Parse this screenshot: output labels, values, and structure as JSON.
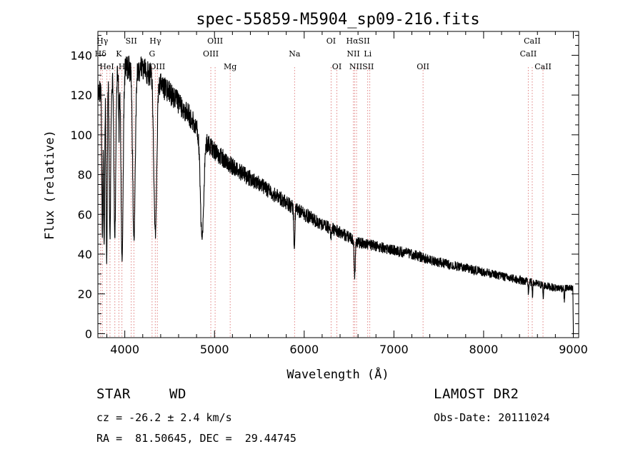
{
  "chart_data": {
    "type": "line",
    "title": "spec-55859-M5904_sp09-216.fits",
    "xlabel": "Wavelength (Å)",
    "ylabel": "Flux (relative)",
    "xlim": [
      3700,
      9060
    ],
    "ylim": [
      -2,
      152
    ],
    "xticks": [
      4000,
      5000,
      6000,
      7000,
      8000,
      9000
    ],
    "yticks": [
      0,
      20,
      40,
      60,
      80,
      100,
      120,
      140
    ],
    "minor_x_step": 200,
    "minor_y_step": 5,
    "grid": false,
    "legend": "none",
    "line_color": "#000000",
    "marker_color": "#d04040",
    "continuum": [
      [
        3700,
        120
      ],
      [
        3800,
        126
      ],
      [
        3900,
        130
      ],
      [
        4000,
        133
      ],
      [
        4100,
        134
      ],
      [
        4200,
        133
      ],
      [
        4300,
        130
      ],
      [
        4400,
        125
      ],
      [
        4500,
        121
      ],
      [
        4600,
        116
      ],
      [
        4700,
        111
      ],
      [
        4800,
        104
      ],
      [
        4900,
        97
      ],
      [
        5000,
        92
      ],
      [
        5100,
        88
      ],
      [
        5200,
        84
      ],
      [
        5400,
        78
      ],
      [
        5600,
        72
      ],
      [
        5800,
        66
      ],
      [
        6000,
        60
      ],
      [
        6200,
        55
      ],
      [
        6400,
        51
      ],
      [
        6600,
        46
      ],
      [
        6800,
        44
      ],
      [
        7000,
        42
      ],
      [
        7200,
        40
      ],
      [
        7400,
        37
      ],
      [
        7600,
        35
      ],
      [
        7800,
        33
      ],
      [
        8000,
        31
      ],
      [
        8200,
        29
      ],
      [
        8400,
        27
      ],
      [
        8600,
        25
      ],
      [
        8800,
        23
      ],
      [
        8950,
        23
      ],
      [
        9000,
        22
      ]
    ],
    "absorption_lines": [
      {
        "center": 3750,
        "depth": 75,
        "width": 8
      },
      {
        "center": 3770,
        "depth": 80,
        "width": 8
      },
      {
        "center": 3798,
        "depth": 90,
        "width": 9
      },
      {
        "center": 3835,
        "depth": 80,
        "width": 11
      },
      {
        "center": 3889,
        "depth": 80,
        "width": 14
      },
      {
        "center": 3935,
        "depth": 30,
        "width": 5
      },
      {
        "center": 3970,
        "depth": 95,
        "width": 16
      },
      {
        "center": 4102,
        "depth": 87,
        "width": 20
      },
      {
        "center": 4340,
        "depth": 78,
        "width": 22
      },
      {
        "center": 4861,
        "depth": 52,
        "width": 26
      },
      {
        "center": 5890,
        "depth": 20,
        "width": 9
      },
      {
        "center": 6300,
        "depth": 4,
        "width": 8
      },
      {
        "center": 6563,
        "depth": 18,
        "width": 9
      },
      {
        "center": 8500,
        "depth": 6,
        "width": 5
      },
      {
        "center": 8545,
        "depth": 6,
        "width": 5
      },
      {
        "center": 8665,
        "depth": 7,
        "width": 5
      },
      {
        "center": 8900,
        "depth": 6,
        "width": 6
      }
    ],
    "noise_amplitude": 2.5,
    "line_markers": [
      {
        "label": "Hγ",
        "wavelength": 3750,
        "row": 0
      },
      {
        "label": "SII",
        "wavelength": 4072,
        "row": 0
      },
      {
        "label": "Hγ",
        "wavelength": 4340,
        "row": 0
      },
      {
        "label": "OIII",
        "wavelength": 5007,
        "row": 0
      },
      {
        "label": "OI",
        "wavelength": 6300,
        "row": 0
      },
      {
        "label": "HαSII",
        "wavelength": 6600,
        "row": 0
      },
      {
        "label": "CaII",
        "wavelength": 8542,
        "row": 0
      },
      {
        "label": "Hδ",
        "wavelength": 3730,
        "row": 1
      },
      {
        "label": "K",
        "wavelength": 3934,
        "row": 1
      },
      {
        "label": "G",
        "wavelength": 4304,
        "row": 1
      },
      {
        "label": "OIII",
        "wavelength": 4959,
        "row": 1
      },
      {
        "label": "Na",
        "wavelength": 5893,
        "row": 1
      },
      {
        "label": "NII",
        "wavelength": 6548,
        "row": 1
      },
      {
        "label": "Li",
        "wavelength": 6708,
        "row": 1
      },
      {
        "label": "CaII",
        "wavelength": 8498,
        "row": 1
      },
      {
        "label": "HeI",
        "wavelength": 3800,
        "row": 2
      },
      {
        "label": "H",
        "wavelength": 3968,
        "row": 2
      },
      {
        "label": "OIII",
        "wavelength": 4363,
        "row": 2
      },
      {
        "label": "Mg",
        "wavelength": 5175,
        "row": 2
      },
      {
        "label": "OI",
        "wavelength": 6364,
        "row": 2
      },
      {
        "label": "NIISII",
        "wavelength": 6640,
        "row": 2
      },
      {
        "label": "OII",
        "wavelength": 7325,
        "row": 2
      },
      {
        "label": "CaII",
        "wavelength": 8662,
        "row": 2
      }
    ],
    "marker_lines": [
      3730,
      3750,
      3800,
      3835,
      3889,
      3934,
      3968,
      4072,
      4102,
      4304,
      4340,
      4363,
      4959,
      5007,
      5175,
      5893,
      6300,
      6364,
      6548,
      6563,
      6584,
      6708,
      6731,
      7325,
      8498,
      8542,
      8662
    ]
  },
  "info": {
    "object_class": "STAR",
    "subclass": "WD",
    "survey": "LAMOST DR2",
    "redshift": "cz = -26.2 ± 2.4 km/s",
    "obs_date": "Obs-Date: 20111024",
    "coords": "RA =  81.50645, DEC =  29.44745"
  }
}
